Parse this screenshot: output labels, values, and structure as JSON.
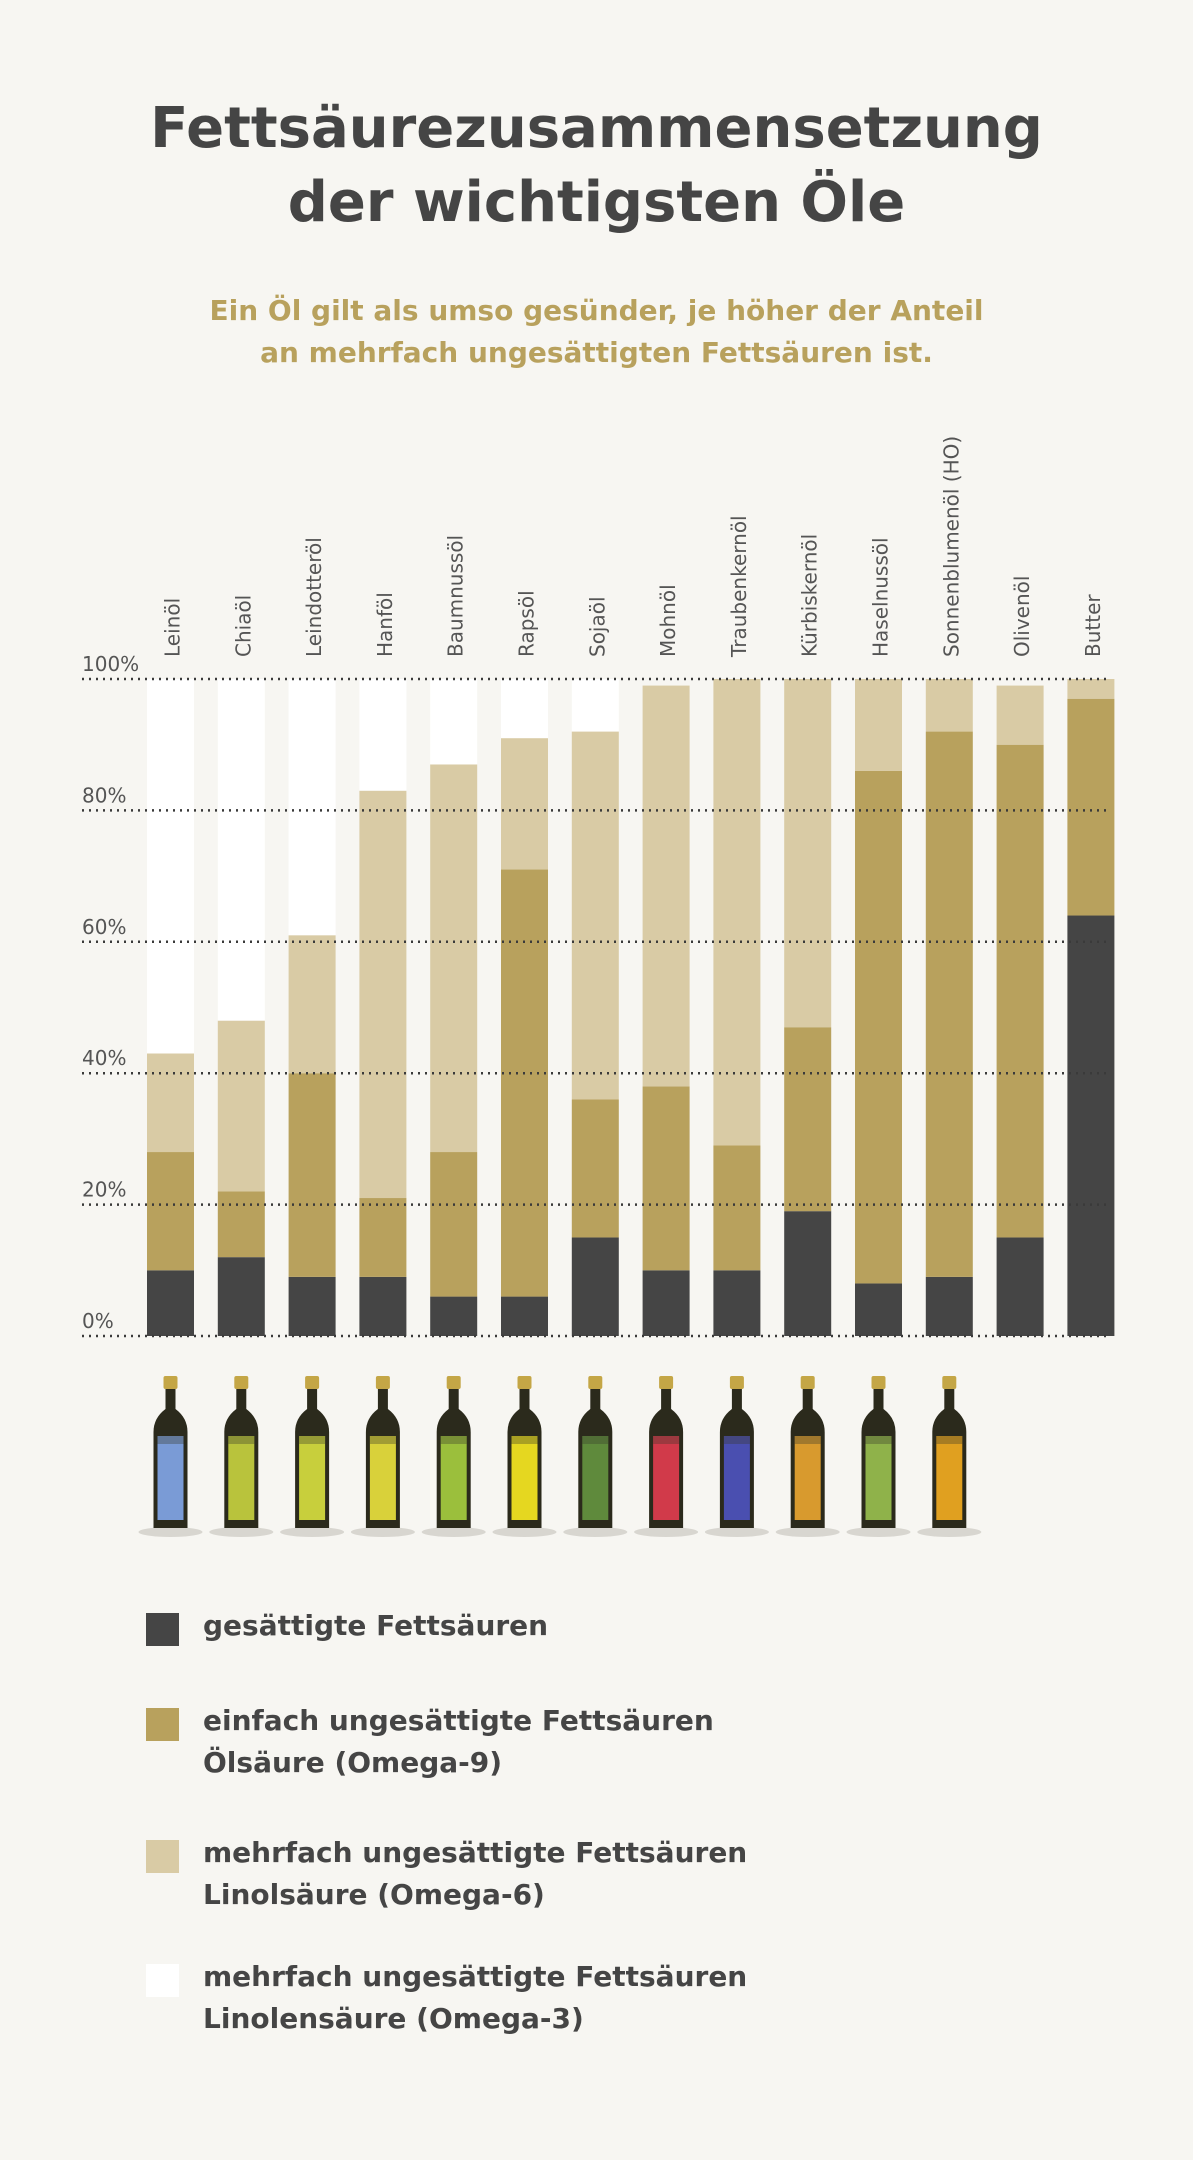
{
  "header": {
    "title_line1": "Fettsäurezusammensetzung",
    "title_line2": "der wichtigsten Öle",
    "subtitle_line1": "Ein Öl gilt als umso gesünder, je höher der Anteil",
    "subtitle_line2": "an mehrfach ungesättigten Fettsäuren ist."
  },
  "colors": {
    "saturated": "#454545",
    "omega9": "#b8a15d",
    "omega6": "#d9cba5",
    "omega3": "#ffffff",
    "background": "#f7f6f2"
  },
  "legend": [
    {
      "key": "saturated",
      "line1": "gesättigte Fettsäuren",
      "line2": ""
    },
    {
      "key": "omega9",
      "line1": "einfach ungesättigte Fettsäuren",
      "line2": "Ölsäure (Omega-9)"
    },
    {
      "key": "omega6",
      "line1": "mehrfach ungesättigte Fettsäuren",
      "line2": "Linolsäure (Omega-6)"
    },
    {
      "key": "omega3",
      "line1": "mehrfach ungesättigte Fettsäuren",
      "line2": "Linolensäure (Omega-3)"
    }
  ],
  "chart_data": {
    "type": "bar",
    "stacked": true,
    "title": "Fettsäurezusammensetzung der wichtigsten Öle",
    "categories": [
      "Leinöl",
      "Chiaöl",
      "Leindotteröl",
      "Hanföl",
      "Baumnussöl",
      "Rapsöl",
      "Sojaöl",
      "Mohnöl",
      "Traubenkernöl",
      "Kürbiskernöl",
      "Haselnussöl",
      "Sonnenblumenöl (HO)",
      "Olivenöl",
      "Butter"
    ],
    "yticks": [
      "0%",
      "20%",
      "40%",
      "60%",
      "80%",
      "100%"
    ],
    "ylim": [
      0,
      100
    ],
    "grid": true,
    "series": [
      {
        "name": "gesättigte Fettsäuren",
        "key": "saturated",
        "values": [
          10,
          12,
          9,
          9,
          6,
          6,
          15,
          10,
          10,
          19,
          8,
          9,
          15,
          64
        ]
      },
      {
        "name": "einfach ungesättigte Fettsäuren Ölsäure (Omega-9)",
        "key": "omega9",
        "values": [
          18,
          10,
          31,
          12,
          22,
          65,
          21,
          28,
          19,
          28,
          78,
          83,
          75,
          33
        ]
      },
      {
        "name": "mehrfach ungesättigte Fettsäuren Linolsäure (Omega-6)",
        "key": "omega6",
        "values": [
          15,
          26,
          21,
          62,
          59,
          20,
          56,
          61,
          71,
          53,
          14,
          8,
          9,
          3
        ]
      },
      {
        "name": "mehrfach ungesättigte Fettsäuren Linolensäure (Omega-3)",
        "key": "omega3",
        "values": [
          57,
          52,
          39,
          17,
          13,
          9,
          8,
          0,
          0,
          0,
          0,
          0,
          0,
          0
        ]
      }
    ],
    "bottle_colors": [
      "#7a9bd6",
      "#b9c33c",
      "#c8cf3c",
      "#d9d13a",
      "#9bbf3c",
      "#e5d720",
      "#5f8a3c",
      "#d13a4a",
      "#4a4fb0",
      "#d89a2e",
      "#8fb24a",
      "#e0a020"
    ]
  }
}
